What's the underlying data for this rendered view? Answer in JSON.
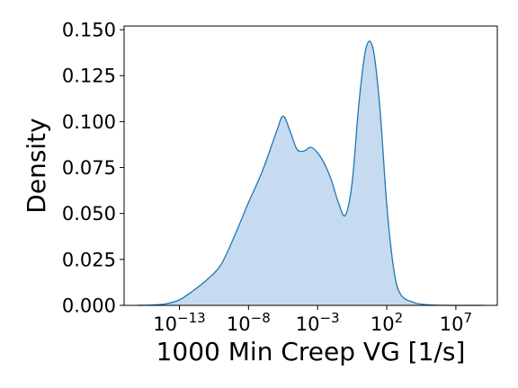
{
  "chart_data": {
    "type": "area",
    "title": "",
    "xlabel": "1000 Min Creep VG [1/s]",
    "ylabel": "Density",
    "x_scale": "log10",
    "xlim": [
      1e-17,
      10000000000.0
    ],
    "ylim": [
      0,
      0.152
    ],
    "grid": false,
    "x_ticks": [
      {
        "base": "10",
        "exp": "−13",
        "value": 1e-13
      },
      {
        "base": "10",
        "exp": "−8",
        "value": 1e-08
      },
      {
        "base": "10",
        "exp": "−3",
        "value": 0.001
      },
      {
        "base": "10",
        "exp": "2",
        "value": 100.0
      },
      {
        "base": "10",
        "exp": "7",
        "value": 10000000.0
      }
    ],
    "y_ticks": [
      {
        "label": "0.000",
        "value": 0.0
      },
      {
        "label": "0.025",
        "value": 0.025
      },
      {
        "label": "0.050",
        "value": 0.05
      },
      {
        "label": "0.075",
        "value": 0.075
      },
      {
        "label": "0.100",
        "value": 0.1
      },
      {
        "label": "0.125",
        "value": 0.125
      },
      {
        "label": "0.150",
        "value": 0.15
      }
    ],
    "series": [
      {
        "line_color": "#1f77b4",
        "fill_color": "#c6dbef",
        "x": [
          1e-16,
          1e-15,
          1e-14,
          1e-13,
          1e-12,
          1e-11,
          1e-10,
          1e-09,
          1e-08,
          1e-07,
          1e-06,
          3.16e-06,
          1e-05,
          3.16e-05,
          0.0001,
          0.000316,
          0.001,
          0.00316,
          0.01,
          0.0316,
          0.1,
          0.316,
          1,
          3.16,
          10,
          31.6,
          100,
          316,
          1000,
          10000.0,
          100000.0,
          1000000.0,
          10000000.0,
          100000000.0,
          1000000000.0
        ],
        "y": [
          0.0,
          0.0002,
          0.0008,
          0.003,
          0.008,
          0.014,
          0.022,
          0.038,
          0.056,
          0.073,
          0.094,
          0.103,
          0.095,
          0.085,
          0.084,
          0.086,
          0.083,
          0.077,
          0.068,
          0.056,
          0.049,
          0.067,
          0.111,
          0.14,
          0.14,
          0.108,
          0.055,
          0.02,
          0.006,
          0.0015,
          0.0003,
          5e-05,
          0.0,
          0.0,
          0.0
        ]
      }
    ]
  }
}
